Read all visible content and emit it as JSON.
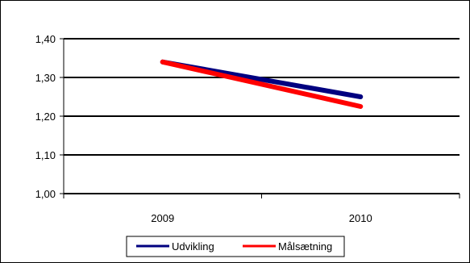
{
  "chart_data": {
    "type": "line",
    "categories": [
      "2009",
      "2010"
    ],
    "series": [
      {
        "name": "Udvikling",
        "values": [
          1.34,
          1.25
        ],
        "color": "#000080"
      },
      {
        "name": "Målsætning",
        "values": [
          1.34,
          1.225
        ],
        "color": "#ff0000"
      }
    ],
    "ylim": [
      1.0,
      1.4
    ],
    "yticks": [
      "1,00",
      "1,10",
      "1,20",
      "1,30",
      "1,40"
    ],
    "ytick_values": [
      1.0,
      1.1,
      1.2,
      1.3,
      1.4
    ],
    "grid": true,
    "legend_position": "bottom"
  }
}
